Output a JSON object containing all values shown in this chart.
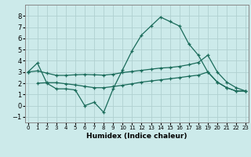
{
  "xlabel": "Humidex (Indice chaleur)",
  "x": [
    0,
    1,
    2,
    3,
    4,
    5,
    6,
    7,
    8,
    9,
    10,
    11,
    12,
    13,
    14,
    15,
    16,
    17,
    18,
    19,
    20,
    21,
    22,
    23
  ],
  "y_main": [
    3.0,
    3.8,
    2.0,
    1.5,
    1.5,
    1.4,
    0.0,
    0.3,
    -0.6,
    1.5,
    3.2,
    4.9,
    6.3,
    7.1,
    7.9,
    7.5,
    7.1,
    5.5,
    4.5,
    3.0,
    2.1,
    1.6,
    1.3,
    1.3
  ],
  "y_upper": [
    3.0,
    3.1,
    2.9,
    2.7,
    2.7,
    2.75,
    2.78,
    2.75,
    2.72,
    2.8,
    2.95,
    3.05,
    3.15,
    3.25,
    3.35,
    3.4,
    3.5,
    3.65,
    3.85,
    4.5,
    3.0,
    2.1,
    1.6,
    1.3
  ],
  "y_lower": [
    null,
    2.0,
    2.05,
    2.05,
    1.95,
    1.85,
    1.72,
    1.6,
    1.6,
    1.7,
    1.82,
    1.95,
    2.1,
    2.2,
    2.3,
    2.4,
    2.5,
    2.62,
    2.72,
    3.0,
    2.1,
    1.6,
    1.3,
    1.3
  ],
  "ylim": [
    -1.5,
    9.0
  ],
  "xlim": [
    -0.3,
    23.3
  ],
  "yticks": [
    -1,
    0,
    1,
    2,
    3,
    4,
    5,
    6,
    7,
    8
  ],
  "xticks": [
    0,
    1,
    2,
    3,
    4,
    5,
    6,
    7,
    8,
    9,
    10,
    11,
    12,
    13,
    14,
    15,
    16,
    17,
    18,
    19,
    20,
    21,
    22,
    23
  ],
  "bg_color": "#cceaea",
  "line_color": "#1a6b5a",
  "grid_color": "#b0d0d0"
}
